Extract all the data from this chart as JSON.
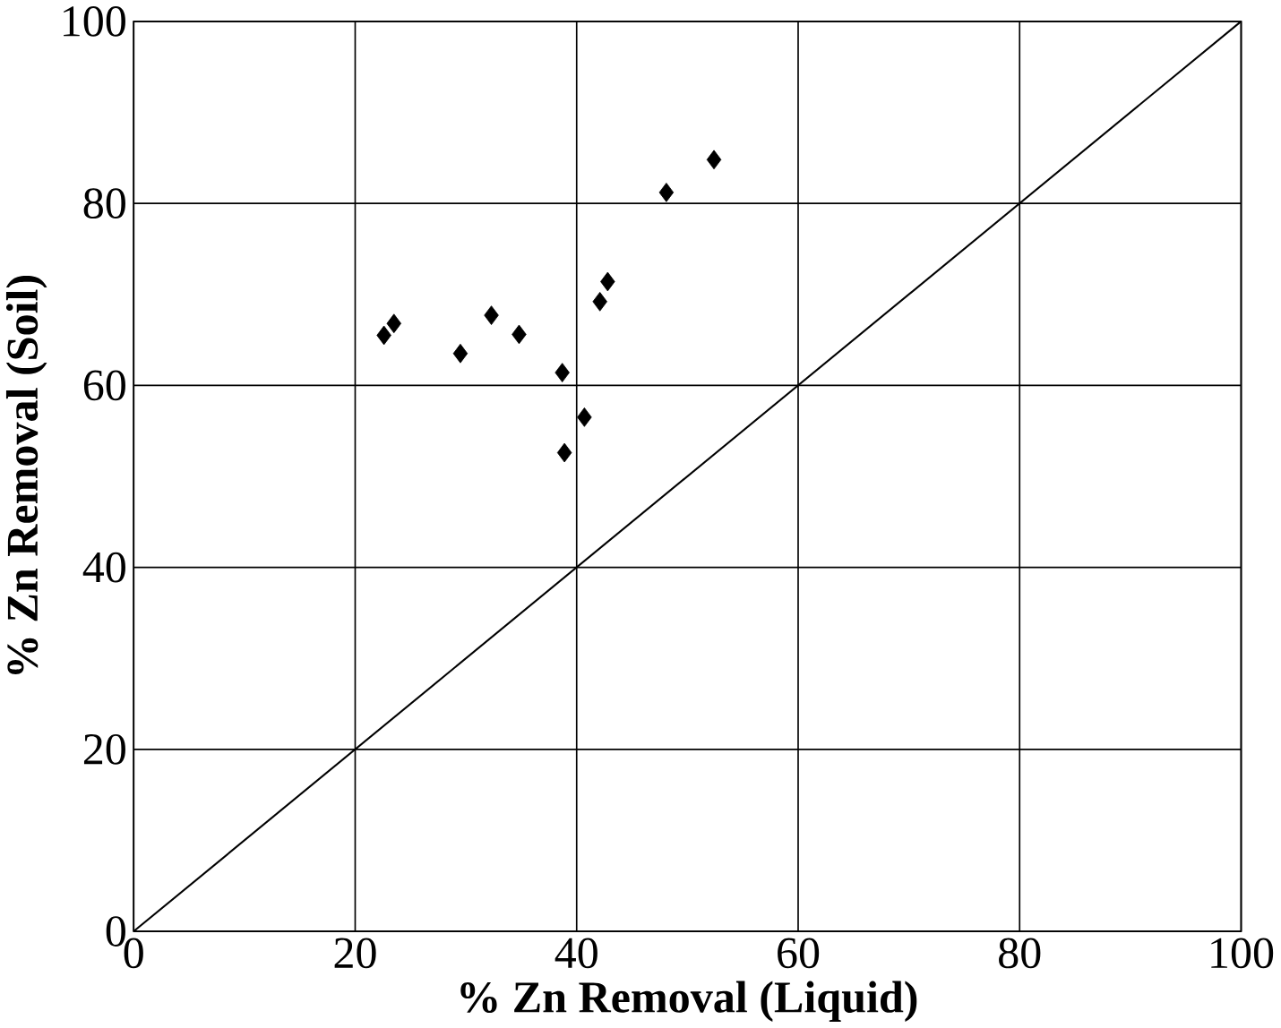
{
  "chart_data": {
    "type": "scatter",
    "xlabel": "% Zn Removal (Liquid)",
    "ylabel": "% Zn Removal (Soil)",
    "xlim": [
      0,
      100
    ],
    "ylim": [
      0,
      100
    ],
    "xticks": [
      0,
      20,
      40,
      60,
      80,
      100
    ],
    "yticks": [
      0,
      20,
      40,
      60,
      80,
      100
    ],
    "grid": true,
    "marker": "diamond",
    "series": [
      {
        "color": "#000000",
        "x": [
          22.6,
          23.5,
          29.5,
          32.3,
          34.8,
          38.7,
          38.9,
          40.7,
          42.1,
          42.8,
          48.1,
          52.4
        ],
        "values": [
          65.5,
          66.8,
          63.5,
          67.7,
          65.6,
          61.4,
          52.6,
          56.5,
          69.2,
          71.4,
          81.2,
          84.8
        ]
      },
      {
        "type": "line",
        "color": "#000000",
        "marker": "none",
        "x": [
          0,
          100
        ],
        "values": [
          0,
          100
        ]
      }
    ]
  }
}
